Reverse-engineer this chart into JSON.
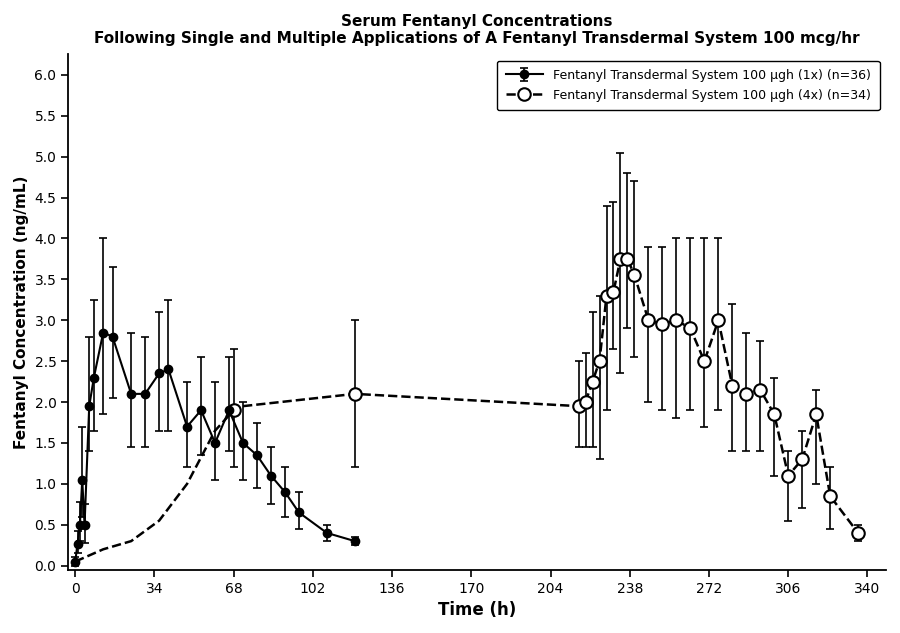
{
  "title1": "Serum Fentanyl Concentrations",
  "title2": "Following Single and Multiple Applications of A Fentanyl Transdermal System 100 mcg/hr",
  "xlabel": "Time (h)",
  "ylabel": "Fentanyl Concentration (ng/mL)",
  "legend1": "Fentanyl Transdermal System 100 μgh (1x) (n=36)",
  "legend2": "Fentanyl Transdermal System 100 μgh (4x) (n=34)",
  "xlim": [
    -3,
    348
  ],
  "ylim": [
    -0.05,
    6.25
  ],
  "xticks": [
    0,
    34,
    68,
    102,
    136,
    170,
    204,
    238,
    272,
    306,
    340
  ],
  "yticks": [
    0.0,
    0.5,
    1.0,
    1.5,
    2.0,
    2.5,
    3.0,
    3.5,
    4.0,
    4.5,
    5.0,
    5.5,
    6.0
  ],
  "s1_x": [
    0,
    1,
    2,
    3,
    4,
    6,
    8,
    12,
    16,
    24,
    30,
    36,
    40,
    48,
    54,
    60,
    66,
    72,
    78,
    84,
    90,
    96,
    108,
    120
  ],
  "s1_y": [
    0.05,
    0.27,
    0.5,
    1.05,
    0.5,
    1.95,
    2.3,
    2.85,
    2.8,
    2.1,
    2.1,
    2.35,
    2.4,
    1.7,
    1.9,
    1.5,
    1.9,
    1.5,
    1.35,
    1.1,
    0.9,
    0.65,
    0.4,
    0.3
  ],
  "s1_elo": [
    0.05,
    0.12,
    0.2,
    0.45,
    0.22,
    0.55,
    0.65,
    1.0,
    0.75,
    0.65,
    0.65,
    0.7,
    0.75,
    0.5,
    0.55,
    0.45,
    0.5,
    0.45,
    0.4,
    0.35,
    0.3,
    0.2,
    0.1,
    0.05
  ],
  "s1_ehi": [
    0.05,
    0.15,
    0.28,
    0.65,
    0.25,
    0.85,
    0.95,
    1.15,
    0.85,
    0.75,
    0.7,
    0.75,
    0.85,
    0.55,
    0.65,
    0.75,
    0.65,
    0.5,
    0.4,
    0.35,
    0.3,
    0.25,
    0.1,
    0.05
  ],
  "s2_line_x": [
    0,
    12,
    24,
    36,
    48,
    60,
    68,
    72,
    120,
    216,
    219,
    222,
    225,
    228,
    231,
    234,
    237,
    240,
    246,
    252,
    258,
    264,
    270,
    276,
    282,
    288,
    294,
    300,
    306,
    312,
    318,
    324,
    336
  ],
  "s2_line_y": [
    0.05,
    0.2,
    0.3,
    0.55,
    1.0,
    1.65,
    1.9,
    1.95,
    2.1,
    1.95,
    2.0,
    2.25,
    2.5,
    3.3,
    3.35,
    3.75,
    3.75,
    3.55,
    3.0,
    2.95,
    3.0,
    2.9,
    2.5,
    3.0,
    2.2,
    2.1,
    2.15,
    1.85,
    1.1,
    1.3,
    1.85,
    0.85,
    0.4
  ],
  "s2_x": [
    68,
    216,
    219,
    222,
    225,
    228,
    231,
    234,
    237,
    240,
    246,
    252,
    258,
    264,
    270,
    276,
    282,
    288,
    294,
    300,
    306,
    312,
    318,
    324,
    336
  ],
  "s2_y": [
    1.9,
    1.95,
    2.0,
    2.25,
    2.5,
    3.3,
    3.35,
    3.75,
    3.75,
    3.55,
    3.0,
    2.95,
    3.0,
    2.9,
    2.5,
    3.0,
    2.2,
    2.1,
    2.15,
    1.85,
    1.1,
    1.3,
    1.85,
    0.85,
    0.4
  ],
  "s2_elo": [
    0.7,
    0.5,
    0.55,
    0.8,
    1.2,
    1.4,
    0.7,
    1.4,
    0.85,
    1.0,
    1.0,
    1.05,
    1.2,
    1.0,
    0.8,
    1.1,
    0.8,
    0.7,
    0.75,
    0.75,
    0.55,
    0.6,
    0.85,
    0.4,
    0.1
  ],
  "s2_ehi": [
    0.75,
    0.55,
    0.6,
    0.85,
    0.8,
    1.1,
    1.1,
    1.3,
    1.05,
    1.15,
    0.9,
    0.95,
    1.0,
    1.1,
    1.5,
    1.0,
    1.0,
    0.75,
    0.6,
    0.45,
    0.3,
    0.35,
    0.3,
    0.35,
    0.1
  ],
  "s2_pt_x_noerr": [
    120
  ],
  "s2_pt_y_noerr": [
    2.1
  ],
  "s2_pt_elo_noerr": [
    0.9
  ],
  "s2_pt_ehi_noerr": [
    0.9
  ]
}
